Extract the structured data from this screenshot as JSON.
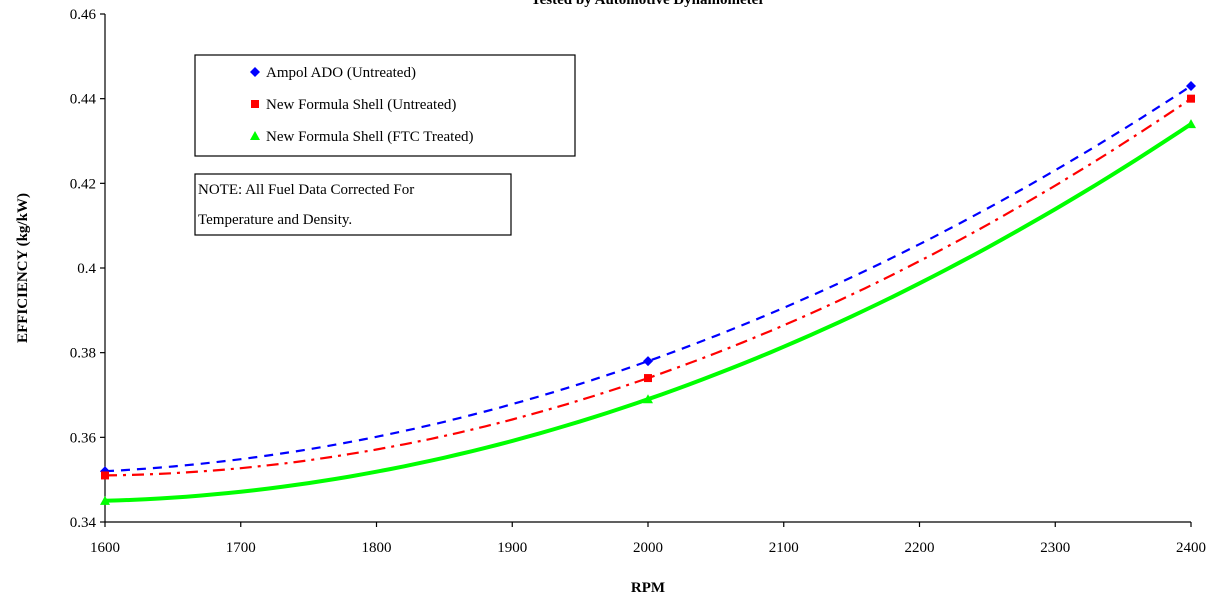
{
  "chart_data": {
    "type": "line",
    "title_partial": "Tested by Automotive Dynamometer",
    "xlabel": "RPM",
    "ylabel": "EFFICIENCY (kg/kW)",
    "xlim": [
      1600,
      2400
    ],
    "ylim": [
      0.34,
      0.46
    ],
    "x_ticks": [
      "1600",
      "1700",
      "1800",
      "1900",
      "2000",
      "2100",
      "2200",
      "2300",
      "2400"
    ],
    "y_ticks": [
      "0.34",
      "0.36",
      "0.38",
      "0.4",
      "0.42",
      "0.44",
      "0.46"
    ],
    "grid": false,
    "legend_placement": "top-left",
    "note": [
      "NOTE: All Fuel Data Corrected For",
      "Temperature and Density."
    ],
    "series": [
      {
        "name": "Ampol ADO (Untreated)",
        "color": "#0000ff",
        "marker": "diamond",
        "line": "dashed",
        "x": [
          1600,
          2000,
          2400
        ],
        "y": [
          0.352,
          0.378,
          0.443
        ]
      },
      {
        "name": "New Formula Shell (Untreated)",
        "color": "#ff0000",
        "marker": "square",
        "line": "dash-dot",
        "x": [
          1600,
          2000,
          2400
        ],
        "y": [
          0.351,
          0.374,
          0.44
        ]
      },
      {
        "name": "New Formula Shell (FTC Treated)",
        "color": "#00ff00",
        "marker": "triangle",
        "line": "solid",
        "x": [
          1600,
          2000,
          2400
        ],
        "y": [
          0.345,
          0.369,
          0.434
        ]
      }
    ]
  }
}
